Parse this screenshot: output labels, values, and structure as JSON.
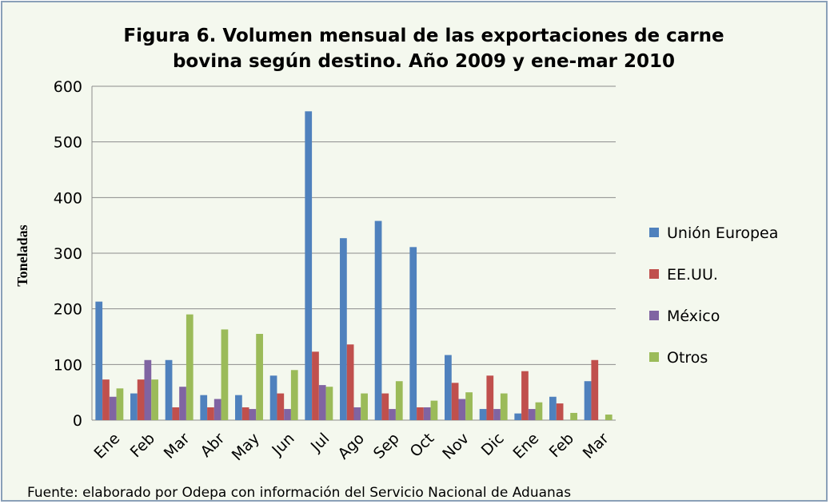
{
  "chart_data": {
    "type": "bar",
    "title": "Figura 6. Volumen mensual de las exportaciones de carne",
    "subtitle": "bovina según destino.  Año 2009 y ene-mar 2010",
    "y_label": "Toneladas",
    "source": "Fuente: elaborado por Odepa con información del Servicio Nacional de Aduanas",
    "categories": [
      "Ene",
      "Feb",
      "Mar",
      "Abr",
      "May",
      "Jun",
      "Jul",
      "Ago",
      "Sep",
      "Oct",
      "Nov",
      "Dic",
      "Ene",
      "Feb",
      "Mar"
    ],
    "series": [
      {
        "name": "Unión Europea",
        "color": "#4f81bd",
        "values": [
          213,
          48,
          108,
          45,
          45,
          80,
          555,
          327,
          358,
          311,
          117,
          20,
          12,
          42,
          70
        ]
      },
      {
        "name": "EE.UU.",
        "color": "#c0504d",
        "values": [
          73,
          73,
          23,
          23,
          23,
          48,
          123,
          136,
          48,
          23,
          67,
          80,
          88,
          30,
          108
        ]
      },
      {
        "name": "México",
        "color": "#8064a2",
        "values": [
          42,
          108,
          60,
          38,
          20,
          20,
          63,
          23,
          20,
          23,
          38,
          20,
          20,
          0,
          0
        ]
      },
      {
        "name": "Otros",
        "color": "#9bbb59",
        "values": [
          57,
          73,
          190,
          163,
          155,
          90,
          60,
          48,
          70,
          35,
          50,
          48,
          32,
          13,
          10
        ]
      }
    ],
    "ylim": [
      0,
      600
    ],
    "yticks": [
      0,
      100,
      200,
      300,
      400,
      500,
      600
    ],
    "grid": true,
    "legend": "right"
  }
}
